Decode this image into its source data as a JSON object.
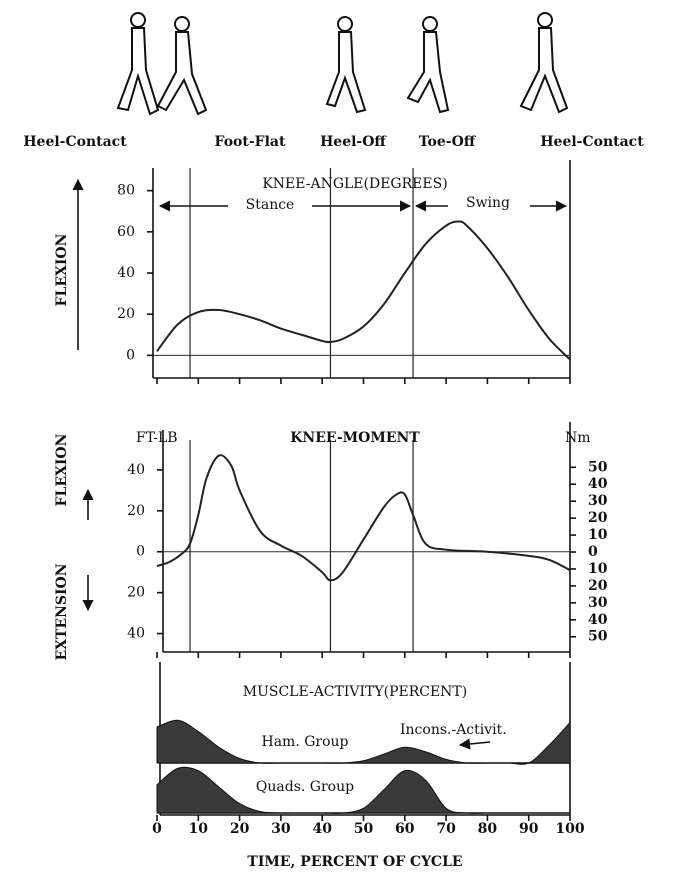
{
  "gait_events": [
    "Heel-Contact",
    "Foot-Flat",
    "Heel-Off",
    "Toe-Off",
    "Heel-Contact"
  ],
  "chart_data": [
    {
      "type": "line",
      "title": "KNEE-ANGLE(DEGREES)",
      "y_label": "FLEXION",
      "annotations": [
        "Stance",
        "Swing"
      ],
      "x": [
        0,
        5,
        10,
        15,
        20,
        25,
        30,
        35,
        40,
        42,
        45,
        50,
        55,
        60,
        65,
        70,
        73,
        75,
        80,
        85,
        90,
        95,
        100
      ],
      "values": [
        2,
        15,
        21,
        22,
        20,
        17,
        13,
        10,
        7,
        6.5,
        8,
        14,
        25,
        40,
        54,
        63,
        65,
        63,
        52,
        38,
        22,
        8,
        -2
      ],
      "color": "#222",
      "xlim": [
        0,
        100
      ],
      "ylim": [
        -11,
        91
      ],
      "yticks": [
        0,
        20,
        40,
        60,
        80
      ],
      "phase_lines": [
        8,
        42,
        62
      ]
    },
    {
      "type": "line",
      "title": "KNEE-MOMENT",
      "y_label_units": "FT-LB",
      "y2_label": "Nm",
      "y_label_top": "FLEXION",
      "y_label_bottom": "EXTENSION",
      "x": [
        0,
        3,
        6,
        8,
        10,
        12,
        15,
        18,
        20,
        25,
        30,
        35,
        40,
        42,
        45,
        50,
        55,
        58,
        60,
        62,
        65,
        70,
        80,
        90,
        95,
        100
      ],
      "values": [
        -7,
        -5,
        -1,
        4,
        18,
        36,
        47,
        42,
        30,
        10,
        3,
        -2,
        -10,
        -14,
        -10,
        6,
        22,
        28,
        28,
        18,
        4,
        1,
        0,
        -2,
        -4,
        -9
      ],
      "color": "#222",
      "xlim": [
        0,
        100
      ],
      "ylim": [
        -49,
        59.5
      ],
      "yticks": [
        40,
        20,
        0,
        {
          "value": -20,
          "label": "20"
        },
        {
          "value": -40,
          "label": "40"
        }
      ],
      "y2lim": [
        -59,
        72
      ],
      "y2ticks": [
        50,
        40,
        30,
        20,
        10,
        0,
        {
          "value": -10,
          "label": "10"
        },
        {
          "value": -20,
          "label": "20"
        },
        {
          "value": -30,
          "label": "30"
        },
        {
          "value": -40,
          "label": "40"
        },
        {
          "value": -50,
          "label": "50"
        }
      ],
      "phase_lines": [
        8,
        42,
        62
      ]
    },
    {
      "type": "area",
      "title": "MUSCLE-ACTIVITY(PERCENT)",
      "annotation": "Incons.-Activit.",
      "x": [
        0,
        5,
        10,
        15,
        20,
        25,
        30,
        35,
        40,
        45,
        50,
        55,
        60,
        65,
        70,
        75,
        80,
        85,
        90,
        95,
        100
      ],
      "series": [
        {
          "name": "Ham. Group",
          "color": "#3a3a3a",
          "values": [
            80,
            95,
            70,
            35,
            10,
            0,
            0,
            0,
            0,
            0,
            5,
            20,
            35,
            25,
            8,
            0,
            0,
            0,
            0,
            40,
            90
          ]
        },
        {
          "name": "Quads. Group",
          "color": "#3a3a3a",
          "values": [
            60,
            95,
            90,
            55,
            20,
            3,
            0,
            0,
            0,
            0,
            10,
            50,
            90,
            70,
            10,
            0,
            0,
            0,
            0,
            0,
            0
          ]
        }
      ],
      "xlim": [
        0,
        100
      ],
      "ylim": [
        0,
        100
      ],
      "xticks": [
        0,
        10,
        20,
        30,
        40,
        50,
        60,
        70,
        80,
        90,
        100
      ],
      "x_label": "TIME, PERCENT OF CYCLE"
    }
  ]
}
